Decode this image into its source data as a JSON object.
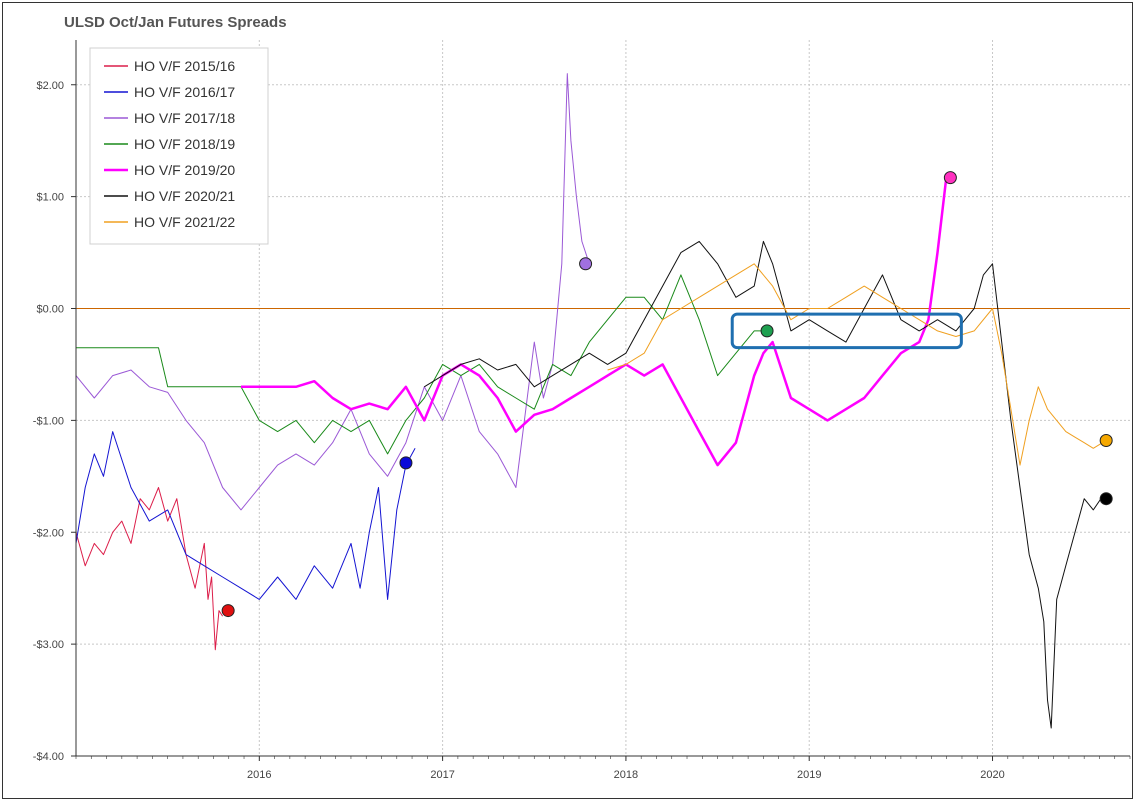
{
  "chart_data": {
    "type": "line",
    "title": "ULSD Oct/Jan Futures Spreads",
    "xlabel": "",
    "ylabel": "",
    "xlim": [
      2015.0,
      2020.75
    ],
    "ylim": [
      -4.0,
      2.4
    ],
    "x_ticks": [
      {
        "value": 2016,
        "label": "2016"
      },
      {
        "value": 2017,
        "label": "2017"
      },
      {
        "value": 2018,
        "label": "2018"
      },
      {
        "value": 2019,
        "label": "2019"
      },
      {
        "value": 2020,
        "label": "2020"
      }
    ],
    "y_ticks": [
      {
        "value": 2,
        "label": "$2.00"
      },
      {
        "value": 1,
        "label": "$1.00"
      },
      {
        "value": 0,
        "label": "$0.00"
      },
      {
        "value": -1,
        "label": "-$1.00"
      },
      {
        "value": -2,
        "label": "-$2.00"
      },
      {
        "value": -3,
        "label": "-$3.00"
      },
      {
        "value": -4,
        "label": "-$4.00"
      }
    ],
    "grid": true,
    "legend_position": "top-left",
    "zero_line_color": "#cc6600",
    "series": [
      {
        "name": "HO V/F 2015/16",
        "color": "#dc1e4a",
        "width": 1,
        "points": [
          [
            2015.0,
            -2.0
          ],
          [
            2015.05,
            -2.3
          ],
          [
            2015.1,
            -2.1
          ],
          [
            2015.15,
            -2.2
          ],
          [
            2015.2,
            -2.0
          ],
          [
            2015.25,
            -1.9
          ],
          [
            2015.3,
            -2.1
          ],
          [
            2015.35,
            -1.7
          ],
          [
            2015.4,
            -1.8
          ],
          [
            2015.45,
            -1.6
          ],
          [
            2015.5,
            -1.9
          ],
          [
            2015.55,
            -1.7
          ],
          [
            2015.6,
            -2.2
          ],
          [
            2015.65,
            -2.5
          ],
          [
            2015.7,
            -2.1
          ],
          [
            2015.72,
            -2.6
          ],
          [
            2015.74,
            -2.4
          ],
          [
            2015.76,
            -3.05
          ],
          [
            2015.78,
            -2.7
          ],
          [
            2015.8,
            -2.75
          ]
        ],
        "end_marker": {
          "x": 2015.83,
          "y": -2.7,
          "color": "#e01010"
        }
      },
      {
        "name": "HO V/F 2016/17",
        "color": "#1414d2",
        "width": 1,
        "points": [
          [
            2015.0,
            -2.1
          ],
          [
            2015.05,
            -1.6
          ],
          [
            2015.1,
            -1.3
          ],
          [
            2015.15,
            -1.5
          ],
          [
            2015.2,
            -1.1
          ],
          [
            2015.3,
            -1.6
          ],
          [
            2015.4,
            -1.9
          ],
          [
            2015.5,
            -1.8
          ],
          [
            2015.6,
            -2.2
          ],
          [
            2015.7,
            -2.3
          ],
          [
            2015.8,
            -2.4
          ],
          [
            2015.9,
            -2.5
          ],
          [
            2016.0,
            -2.6
          ],
          [
            2016.1,
            -2.4
          ],
          [
            2016.2,
            -2.6
          ],
          [
            2016.3,
            -2.3
          ],
          [
            2016.4,
            -2.5
          ],
          [
            2016.5,
            -2.1
          ],
          [
            2016.55,
            -2.5
          ],
          [
            2016.6,
            -2.0
          ],
          [
            2016.65,
            -1.6
          ],
          [
            2016.7,
            -2.6
          ],
          [
            2016.75,
            -1.8
          ],
          [
            2016.8,
            -1.4
          ],
          [
            2016.85,
            -1.25
          ]
        ],
        "end_marker": {
          "x": 2016.8,
          "y": -1.38,
          "color": "#0a0ad8"
        }
      },
      {
        "name": "HO V/F 2017/18",
        "color": "#9b59d6",
        "width": 1,
        "points": [
          [
            2015.0,
            -0.6
          ],
          [
            2015.1,
            -0.8
          ],
          [
            2015.2,
            -0.6
          ],
          [
            2015.3,
            -0.55
          ],
          [
            2015.4,
            -0.7
          ],
          [
            2015.5,
            -0.75
          ],
          [
            2015.6,
            -1.0
          ],
          [
            2015.7,
            -1.2
          ],
          [
            2015.8,
            -1.6
          ],
          [
            2015.9,
            -1.8
          ],
          [
            2016.0,
            -1.6
          ],
          [
            2016.1,
            -1.4
          ],
          [
            2016.2,
            -1.3
          ],
          [
            2016.3,
            -1.4
          ],
          [
            2016.4,
            -1.2
          ],
          [
            2016.5,
            -0.9
          ],
          [
            2016.6,
            -1.3
          ],
          [
            2016.7,
            -1.5
          ],
          [
            2016.8,
            -1.2
          ],
          [
            2016.9,
            -0.7
          ],
          [
            2017.0,
            -1.0
          ],
          [
            2017.1,
            -0.6
          ],
          [
            2017.2,
            -1.1
          ],
          [
            2017.3,
            -1.3
          ],
          [
            2017.4,
            -1.6
          ],
          [
            2017.5,
            -0.3
          ],
          [
            2017.55,
            -0.8
          ],
          [
            2017.6,
            -0.5
          ],
          [
            2017.65,
            0.4
          ],
          [
            2017.68,
            2.1
          ],
          [
            2017.7,
            1.5
          ],
          [
            2017.73,
            1.0
          ],
          [
            2017.76,
            0.6
          ],
          [
            2017.8,
            0.4
          ]
        ],
        "end_marker": {
          "x": 2017.78,
          "y": 0.4,
          "color": "#a070e0"
        }
      },
      {
        "name": "HO V/F 2018/19",
        "color": "#1a8a1a",
        "width": 1,
        "points": [
          [
            2015.0,
            -0.35
          ],
          [
            2015.1,
            -0.35
          ],
          [
            2015.2,
            -0.35
          ],
          [
            2015.3,
            -0.35
          ],
          [
            2015.45,
            -0.35
          ],
          [
            2015.5,
            -0.7
          ],
          [
            2015.7,
            -0.7
          ],
          [
            2015.9,
            -0.7
          ],
          [
            2016.0,
            -1.0
          ],
          [
            2016.1,
            -1.1
          ],
          [
            2016.2,
            -1.0
          ],
          [
            2016.3,
            -1.2
          ],
          [
            2016.4,
            -1.0
          ],
          [
            2016.5,
            -1.1
          ],
          [
            2016.6,
            -1.0
          ],
          [
            2016.7,
            -1.3
          ],
          [
            2016.8,
            -1.0
          ],
          [
            2016.9,
            -0.8
          ],
          [
            2017.0,
            -0.5
          ],
          [
            2017.1,
            -0.6
          ],
          [
            2017.2,
            -0.5
          ],
          [
            2017.3,
            -0.7
          ],
          [
            2017.4,
            -0.8
          ],
          [
            2017.5,
            -0.9
          ],
          [
            2017.6,
            -0.5
          ],
          [
            2017.7,
            -0.6
          ],
          [
            2017.8,
            -0.3
          ],
          [
            2017.9,
            -0.1
          ],
          [
            2018.0,
            0.1
          ],
          [
            2018.1,
            0.1
          ],
          [
            2018.2,
            -0.1
          ],
          [
            2018.3,
            0.3
          ],
          [
            2018.4,
            -0.1
          ],
          [
            2018.5,
            -0.6
          ],
          [
            2018.6,
            -0.4
          ],
          [
            2018.7,
            -0.2
          ],
          [
            2018.75,
            -0.2
          ]
        ],
        "end_marker": {
          "x": 2018.77,
          "y": -0.2,
          "color": "#1ea050"
        }
      },
      {
        "name": "HO V/F 2019/20",
        "color": "#ff00ff",
        "width": 2.5,
        "points": [
          [
            2015.9,
            -0.7
          ],
          [
            2016.0,
            -0.7
          ],
          [
            2016.1,
            -0.7
          ],
          [
            2016.2,
            -0.7
          ],
          [
            2016.3,
            -0.65
          ],
          [
            2016.4,
            -0.8
          ],
          [
            2016.5,
            -0.9
          ],
          [
            2016.6,
            -0.85
          ],
          [
            2016.7,
            -0.9
          ],
          [
            2016.8,
            -0.7
          ],
          [
            2016.9,
            -1.0
          ],
          [
            2017.0,
            -0.6
          ],
          [
            2017.1,
            -0.5
          ],
          [
            2017.2,
            -0.6
          ],
          [
            2017.3,
            -0.8
          ],
          [
            2017.4,
            -1.1
          ],
          [
            2017.5,
            -0.95
          ],
          [
            2017.6,
            -0.9
          ],
          [
            2017.7,
            -0.8
          ],
          [
            2017.8,
            -0.7
          ],
          [
            2017.9,
            -0.6
          ],
          [
            2018.0,
            -0.5
          ],
          [
            2018.1,
            -0.6
          ],
          [
            2018.2,
            -0.5
          ],
          [
            2018.3,
            -0.8
          ],
          [
            2018.4,
            -1.1
          ],
          [
            2018.5,
            -1.4
          ],
          [
            2018.6,
            -1.2
          ],
          [
            2018.7,
            -0.6
          ],
          [
            2018.75,
            -0.4
          ],
          [
            2018.8,
            -0.3
          ],
          [
            2018.9,
            -0.8
          ],
          [
            2019.0,
            -0.9
          ],
          [
            2019.1,
            -1.0
          ],
          [
            2019.2,
            -0.9
          ],
          [
            2019.3,
            -0.8
          ],
          [
            2019.4,
            -0.6
          ],
          [
            2019.5,
            -0.4
          ],
          [
            2019.6,
            -0.3
          ],
          [
            2019.65,
            -0.1
          ],
          [
            2019.7,
            0.5
          ],
          [
            2019.75,
            1.2
          ]
        ],
        "end_marker": {
          "x": 2019.77,
          "y": 1.17,
          "color": "#ff30c0"
        }
      },
      {
        "name": "HO V/F 2020/21",
        "color": "#111111",
        "width": 1,
        "points": [
          [
            2016.9,
            -0.7
          ],
          [
            2017.0,
            -0.6
          ],
          [
            2017.1,
            -0.5
          ],
          [
            2017.2,
            -0.45
          ],
          [
            2017.3,
            -0.55
          ],
          [
            2017.4,
            -0.5
          ],
          [
            2017.5,
            -0.7
          ],
          [
            2017.6,
            -0.6
          ],
          [
            2017.7,
            -0.5
          ],
          [
            2017.8,
            -0.4
          ],
          [
            2017.9,
            -0.5
          ],
          [
            2018.0,
            -0.4
          ],
          [
            2018.1,
            -0.1
          ],
          [
            2018.2,
            0.2
          ],
          [
            2018.3,
            0.5
          ],
          [
            2018.4,
            0.6
          ],
          [
            2018.5,
            0.4
          ],
          [
            2018.6,
            0.1
          ],
          [
            2018.7,
            0.2
          ],
          [
            2018.75,
            0.6
          ],
          [
            2018.8,
            0.4
          ],
          [
            2018.9,
            -0.2
          ],
          [
            2019.0,
            -0.1
          ],
          [
            2019.1,
            -0.2
          ],
          [
            2019.2,
            -0.3
          ],
          [
            2019.3,
            0.0
          ],
          [
            2019.4,
            0.3
          ],
          [
            2019.5,
            -0.1
          ],
          [
            2019.6,
            -0.2
          ],
          [
            2019.7,
            -0.1
          ],
          [
            2019.8,
            -0.2
          ],
          [
            2019.9,
            0.0
          ],
          [
            2019.95,
            0.3
          ],
          [
            2020.0,
            0.4
          ],
          [
            2020.05,
            -0.3
          ],
          [
            2020.1,
            -1.0
          ],
          [
            2020.15,
            -1.6
          ],
          [
            2020.2,
            -2.2
          ],
          [
            2020.25,
            -2.5
          ],
          [
            2020.28,
            -2.8
          ],
          [
            2020.3,
            -3.5
          ],
          [
            2020.32,
            -3.75
          ],
          [
            2020.35,
            -2.6
          ],
          [
            2020.4,
            -2.3
          ],
          [
            2020.45,
            -2.0
          ],
          [
            2020.5,
            -1.7
          ],
          [
            2020.55,
            -1.8
          ],
          [
            2020.6,
            -1.68
          ]
        ],
        "end_marker": {
          "x": 2020.62,
          "y": -1.7,
          "color": "#000000"
        }
      },
      {
        "name": "HO V/F 2021/22",
        "color": "#f0a020",
        "width": 1,
        "points": [
          [
            2017.9,
            -0.55
          ],
          [
            2018.0,
            -0.5
          ],
          [
            2018.1,
            -0.4
          ],
          [
            2018.2,
            -0.1
          ],
          [
            2018.3,
            0.0
          ],
          [
            2018.4,
            0.1
          ],
          [
            2018.5,
            0.2
          ],
          [
            2018.6,
            0.3
          ],
          [
            2018.7,
            0.4
          ],
          [
            2018.8,
            0.2
          ],
          [
            2018.9,
            -0.1
          ],
          [
            2019.0,
            0.0
          ],
          [
            2019.1,
            0.0
          ],
          [
            2019.2,
            0.1
          ],
          [
            2019.3,
            0.2
          ],
          [
            2019.4,
            0.1
          ],
          [
            2019.5,
            0.0
          ],
          [
            2019.6,
            -0.1
          ],
          [
            2019.7,
            -0.2
          ],
          [
            2019.8,
            -0.25
          ],
          [
            2019.9,
            -0.2
          ],
          [
            2020.0,
            0.0
          ],
          [
            2020.05,
            -0.4
          ],
          [
            2020.1,
            -0.9
          ],
          [
            2020.15,
            -1.4
          ],
          [
            2020.2,
            -1.0
          ],
          [
            2020.25,
            -0.7
          ],
          [
            2020.3,
            -0.9
          ],
          [
            2020.35,
            -1.0
          ],
          [
            2020.4,
            -1.1
          ],
          [
            2020.45,
            -1.15
          ],
          [
            2020.5,
            -1.2
          ],
          [
            2020.55,
            -1.25
          ],
          [
            2020.6,
            -1.2
          ]
        ],
        "end_marker": {
          "x": 2020.62,
          "y": -1.18,
          "color": "#f5a800"
        }
      }
    ],
    "highlight_box": {
      "x0": 2018.58,
      "x1": 2019.83,
      "y0": -0.35,
      "y1": -0.05,
      "color": "#1f6fb0"
    }
  }
}
